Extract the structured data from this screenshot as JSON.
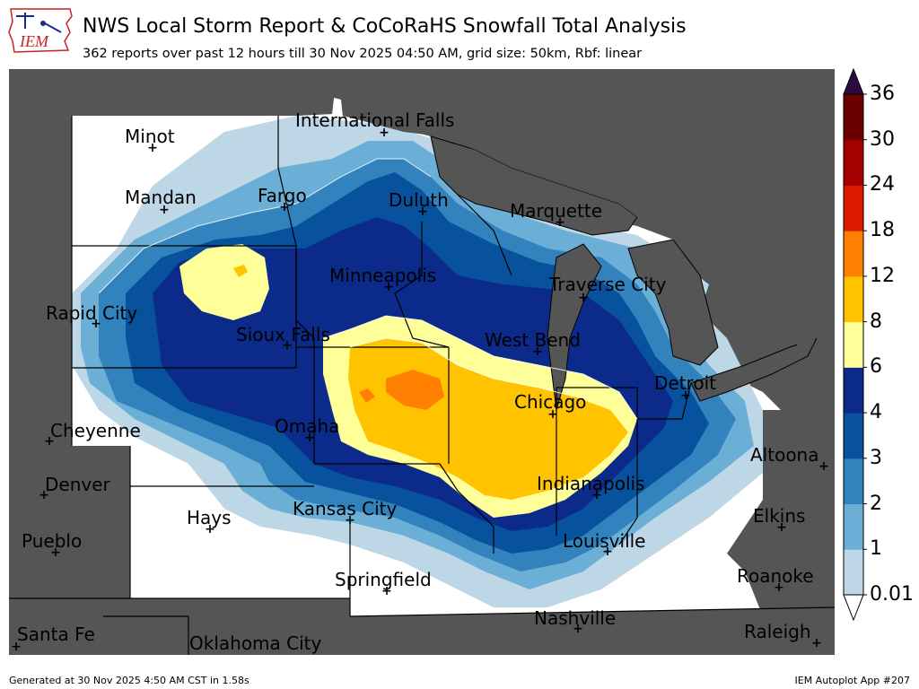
{
  "header": {
    "title": "NWS Local Storm Report & CoCoRaHS Snowfall Total Analysis",
    "subtitle": "362 reports over past 12 hours till 30 Nov 2025 04:50 AM, grid size: 50km, Rbf: linear",
    "logo_text": "IEM"
  },
  "map": {
    "cities": [
      {
        "name": "Minot"
      },
      {
        "name": "International Falls"
      },
      {
        "name": "Mandan"
      },
      {
        "name": "Fargo"
      },
      {
        "name": "Duluth"
      },
      {
        "name": "Marquette"
      },
      {
        "name": "Minneapolis"
      },
      {
        "name": "Traverse City"
      },
      {
        "name": "Rapid City"
      },
      {
        "name": "Sioux Falls"
      },
      {
        "name": "West Bend"
      },
      {
        "name": "Detroit"
      },
      {
        "name": "Chicago"
      },
      {
        "name": "Cheyenne"
      },
      {
        "name": "Omaha"
      },
      {
        "name": "Altoona"
      },
      {
        "name": "Denver"
      },
      {
        "name": "Indianapolis"
      },
      {
        "name": "Hays"
      },
      {
        "name": "Kansas City"
      },
      {
        "name": "Elkins"
      },
      {
        "name": "Pueblo"
      },
      {
        "name": "Louisville"
      },
      {
        "name": "Roanoke"
      },
      {
        "name": "Springfield"
      },
      {
        "name": "Nashville"
      },
      {
        "name": "Santa Fe"
      },
      {
        "name": "Oklahoma City"
      },
      {
        "name": "Raleigh"
      }
    ],
    "marker_symbol": "+"
  },
  "colorbar": {
    "ticks": [
      "0.01",
      "1",
      "2",
      "3",
      "4",
      "6",
      "8",
      "12",
      "18",
      "24",
      "30",
      "36"
    ],
    "colors": {
      "under": "#ffffff",
      "b0": "#bdd7e7",
      "b1": "#6baed6",
      "b2": "#3182bd",
      "b3": "#08519c",
      "b4": "#0c2a8a",
      "b5": "#ffff99",
      "b6": "#ffc300",
      "b7": "#ff8000",
      "b8": "#dd1a00",
      "b9": "#a50000",
      "b10": "#6a0000",
      "over": "#2b0a3d"
    }
  },
  "footer": {
    "generated": "Generated at 30 Nov 2025 4:50 AM CST in 1.58s",
    "app": "IEM Autoplot App #207"
  }
}
